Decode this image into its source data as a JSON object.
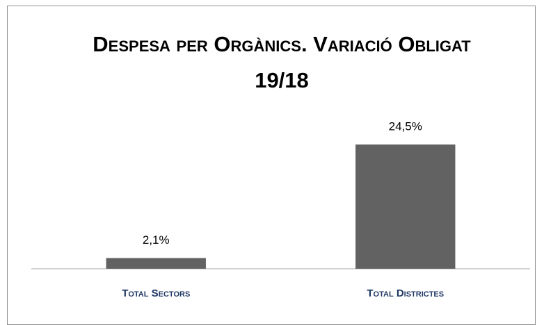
{
  "chart_data": {
    "type": "bar",
    "title": "Despesa per Orgànics. Variació Obligat 19/18",
    "categories": [
      "Total Sectors",
      "Total Districtes"
    ],
    "values": [
      2.1,
      24.5
    ],
    "value_labels": [
      "2,1%",
      "24,5%"
    ],
    "color": "#626262",
    "ylim": [
      0,
      30
    ]
  }
}
